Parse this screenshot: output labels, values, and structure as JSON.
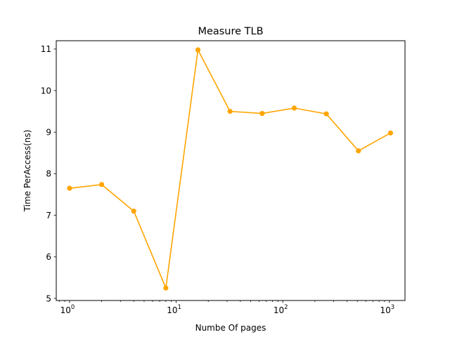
{
  "chart_data": {
    "type": "line",
    "title": "Measure TLB",
    "xlabel": "Numbe Of pages",
    "ylabel": "Time PerAccess(ns)",
    "xscale": "log",
    "xlim": [
      0.75,
      1400
    ],
    "ylim": [
      4.95,
      11.2
    ],
    "grid": false,
    "line_color": "#ffa500",
    "x_ticks": [
      {
        "value": 1,
        "base": "10",
        "exp": "0"
      },
      {
        "value": 10,
        "base": "10",
        "exp": "1"
      },
      {
        "value": 100,
        "base": "10",
        "exp": "2"
      },
      {
        "value": 1000,
        "base": "10",
        "exp": "3"
      }
    ],
    "y_ticks": [
      5,
      6,
      7,
      8,
      9,
      10,
      11
    ],
    "series": [
      {
        "x": [
          1,
          2,
          4,
          8,
          16,
          32,
          64,
          128,
          256,
          512,
          1024
        ],
        "y": [
          7.65,
          7.74,
          7.1,
          5.25,
          10.98,
          9.5,
          9.45,
          9.58,
          9.44,
          8.55,
          8.98
        ]
      }
    ]
  }
}
